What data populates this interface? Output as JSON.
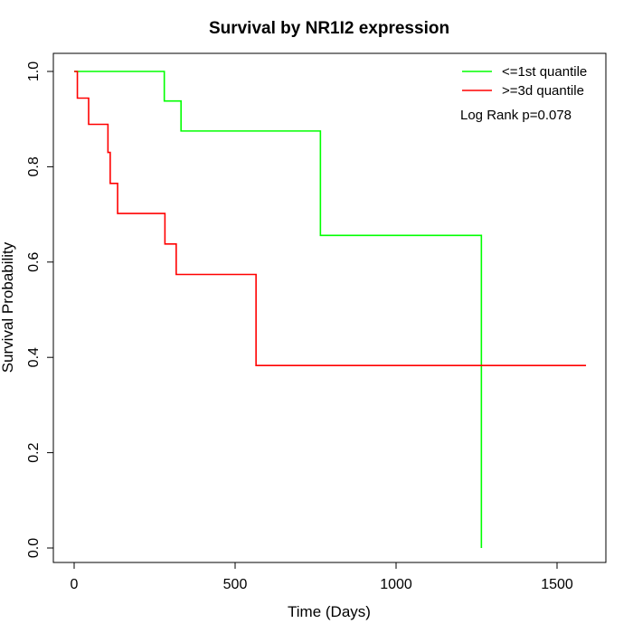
{
  "chart_data": {
    "type": "line",
    "title": "Survival by NR1I2 expression",
    "xlabel": "Time (Days)",
    "ylabel": "Survival Probability",
    "xlim": [
      0,
      1650
    ],
    "ylim": [
      0,
      1
    ],
    "xticks": [
      0,
      500,
      1000,
      1500
    ],
    "xtick_labels": [
      "0",
      "500",
      "1000",
      "1500"
    ],
    "yticks": [
      0,
      0.2,
      0.4,
      0.6,
      0.8,
      1.0
    ],
    "ytick_labels": [
      "0.0",
      "0.2",
      "0.4",
      "0.6",
      "0.8",
      "1.0"
    ],
    "grid": false,
    "legend_position": "top-right",
    "annotation": "Log Rank p=0.078",
    "series": [
      {
        "name": "<=1st quantile",
        "color": "#00ff00",
        "step": true,
        "x": [
          0,
          280,
          332,
          765,
          1265,
          1265
        ],
        "y": [
          1.0,
          0.938,
          0.875,
          0.656,
          0.656,
          0.0
        ]
      },
      {
        "name": ">=3d quantile",
        "color": "#ff0000",
        "step": true,
        "x": [
          0,
          10,
          45,
          105,
          112,
          135,
          282,
          317,
          565,
          1590
        ],
        "y": [
          1.0,
          0.944,
          0.889,
          0.83,
          0.765,
          0.702,
          0.638,
          0.574,
          0.383,
          0.383
        ]
      }
    ]
  }
}
